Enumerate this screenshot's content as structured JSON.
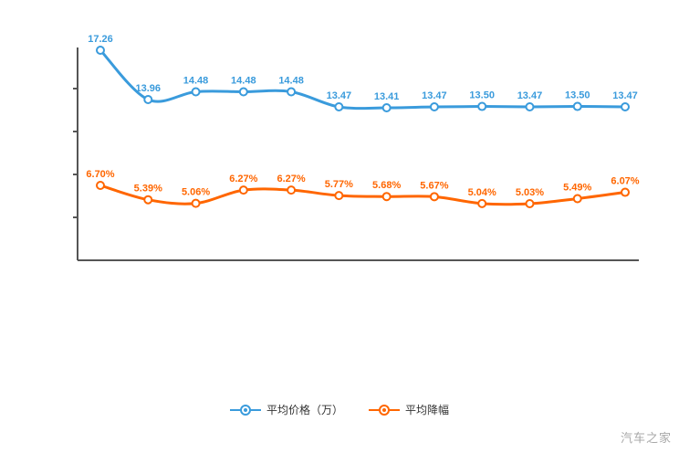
{
  "watermark": "汽车之家",
  "legend": [
    {
      "label": "平均价格（万）",
      "color": "#3a9bdc"
    },
    {
      "label": "平均降幅",
      "color": "#ff6600"
    }
  ],
  "chart_data": {
    "type": "line",
    "title": "",
    "xlabel": "",
    "ylabel": "",
    "grid": false,
    "legend_position": "bottom",
    "x_tick_labels": [],
    "series": [
      {
        "name": "平均价格（万）",
        "color": "#3a9bdc",
        "values": [
          17.26,
          13.96,
          14.48,
          14.48,
          14.48,
          13.47,
          13.41,
          13.47,
          13.5,
          13.47,
          13.5,
          13.47
        ],
        "labels": [
          "17.26",
          "13.96",
          "14.48",
          "14.48",
          "14.48",
          "13.47",
          "13.41",
          "13.47",
          "13.50",
          "13.47",
          "13.50",
          "13.47"
        ]
      },
      {
        "name": "平均降幅",
        "color": "#ff6600",
        "values": [
          6.7,
          5.39,
          5.06,
          6.27,
          6.27,
          5.77,
          5.68,
          5.67,
          5.04,
          5.03,
          5.49,
          6.07
        ],
        "labels": [
          "6.70%",
          "5.39%",
          "5.06%",
          "6.27%",
          "6.27%",
          "5.77%",
          "5.68%",
          "5.67%",
          "5.04%",
          "5.03%",
          "5.49%",
          "6.07%"
        ]
      }
    ]
  }
}
